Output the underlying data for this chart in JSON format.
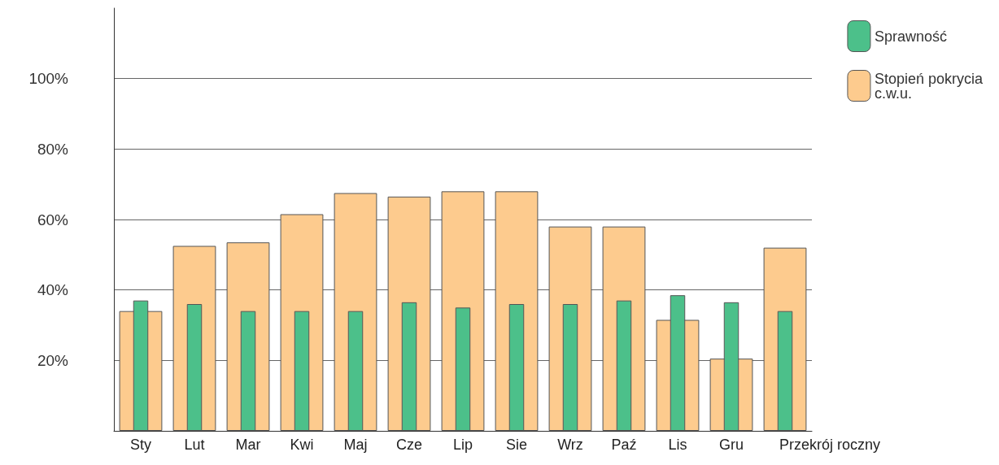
{
  "chart_data": {
    "type": "bar",
    "categories": [
      "Sty",
      "Lut",
      "Mar",
      "Kwi",
      "Maj",
      "Cze",
      "Lip",
      "Sie",
      "Wrz",
      "Paź",
      "Lis",
      "Gru",
      "Przekrój roczny"
    ],
    "series": [
      {
        "name": "Sprawność",
        "color": "#4cc08a",
        "values": [
          37,
          36,
          34,
          34,
          34,
          36.5,
          35,
          36,
          36,
          37,
          38.5,
          36.5,
          34
        ]
      },
      {
        "name": "Stopień pokrycia c.w.u.",
        "color": "#fdcb8e",
        "values": [
          34,
          52.5,
          53.5,
          61.5,
          67.5,
          66.5,
          68,
          68,
          58,
          58,
          31.5,
          20.5,
          52
        ]
      }
    ],
    "ylim": [
      0,
      120
    ],
    "yticks": [
      {
        "value": 0,
        "label": null
      },
      {
        "value": 20,
        "label": "20%"
      },
      {
        "value": 40,
        "label": "40%"
      },
      {
        "value": 60,
        "label": "60%"
      },
      {
        "value": 80,
        "label": "80%"
      },
      {
        "value": 100,
        "label": "100%"
      }
    ],
    "grid": "y",
    "legend": "top right"
  }
}
